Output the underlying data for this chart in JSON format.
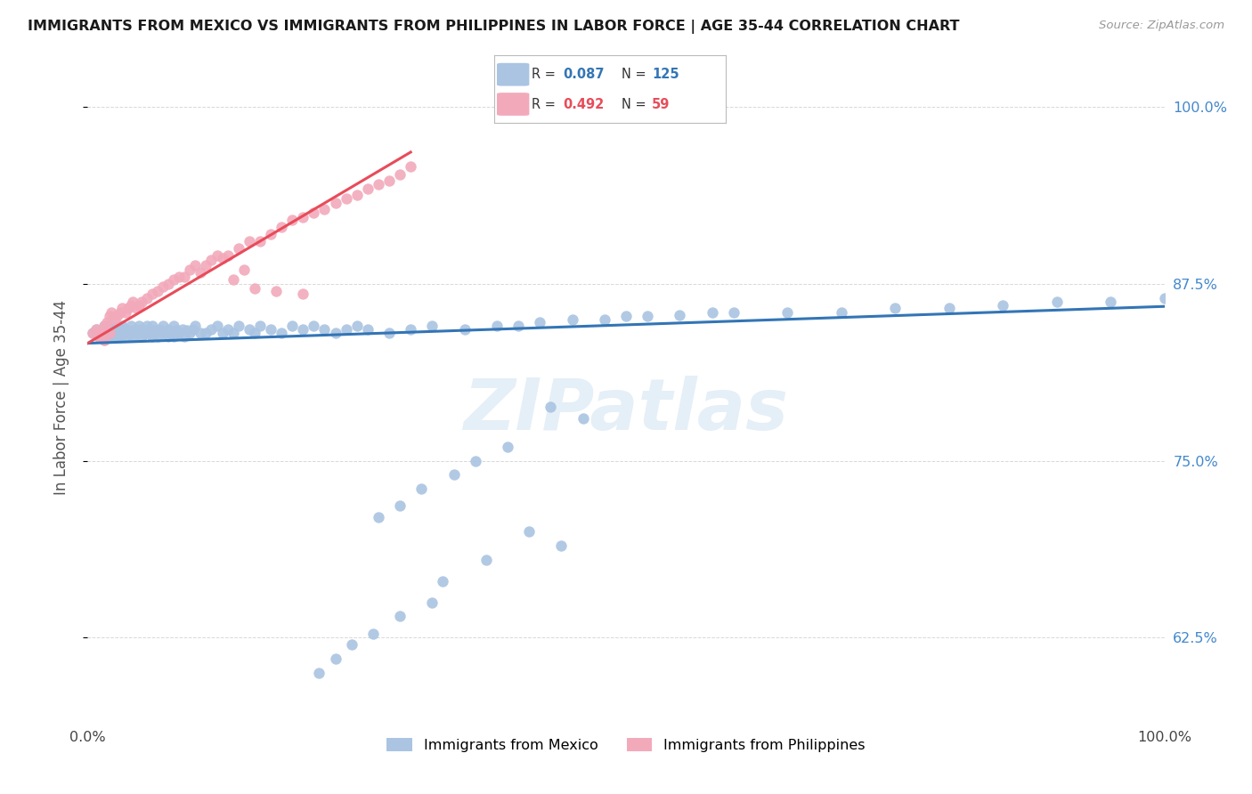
{
  "title": "IMMIGRANTS FROM MEXICO VS IMMIGRANTS FROM PHILIPPINES IN LABOR FORCE | AGE 35-44 CORRELATION CHART",
  "source": "Source: ZipAtlas.com",
  "ylabel": "In Labor Force | Age 35-44",
  "ytick_labels": [
    "100.0%",
    "87.5%",
    "75.0%",
    "62.5%"
  ],
  "ytick_values": [
    1.0,
    0.875,
    0.75,
    0.625
  ],
  "xlim": [
    0.0,
    1.0
  ],
  "ylim": [
    0.565,
    1.025
  ],
  "legend_blue_label": "Immigrants from Mexico",
  "legend_pink_label": "Immigrants from Philippines",
  "blue_color": "#aac4e2",
  "pink_color": "#f2aabb",
  "blue_line_color": "#3375b5",
  "pink_line_color": "#e84c5a",
  "background_color": "#ffffff",
  "grid_color": "#d8d8d8",
  "title_color": "#1a1a1a",
  "axis_label_color": "#555555",
  "right_tick_color": "#4488cc",
  "watermark": "ZIPatlas",
  "blue_x": [
    0.005,
    0.008,
    0.01,
    0.012,
    0.015,
    0.015,
    0.018,
    0.018,
    0.02,
    0.02,
    0.022,
    0.022,
    0.025,
    0.025,
    0.025,
    0.028,
    0.028,
    0.03,
    0.03,
    0.03,
    0.032,
    0.032,
    0.035,
    0.035,
    0.037,
    0.038,
    0.04,
    0.04,
    0.042,
    0.043,
    0.045,
    0.045,
    0.047,
    0.048,
    0.05,
    0.05,
    0.052,
    0.053,
    0.055,
    0.055,
    0.057,
    0.058,
    0.06,
    0.06,
    0.062,
    0.063,
    0.065,
    0.067,
    0.07,
    0.07,
    0.072,
    0.075,
    0.075,
    0.078,
    0.08,
    0.08,
    0.082,
    0.085,
    0.088,
    0.09,
    0.092,
    0.095,
    0.098,
    0.1,
    0.105,
    0.11,
    0.115,
    0.12,
    0.125,
    0.13,
    0.135,
    0.14,
    0.15,
    0.155,
    0.16,
    0.17,
    0.18,
    0.19,
    0.2,
    0.21,
    0.22,
    0.23,
    0.24,
    0.25,
    0.26,
    0.28,
    0.3,
    0.32,
    0.35,
    0.38,
    0.4,
    0.42,
    0.45,
    0.48,
    0.5,
    0.52,
    0.55,
    0.58,
    0.6,
    0.65,
    0.7,
    0.75,
    0.8,
    0.85,
    0.9,
    0.95,
    1.0,
    0.43,
    0.46,
    0.39,
    0.36,
    0.34,
    0.31,
    0.29,
    0.27,
    0.41,
    0.44,
    0.37,
    0.33,
    0.32,
    0.29,
    0.265,
    0.245,
    0.23,
    0.215
  ],
  "blue_y": [
    0.84,
    0.843,
    0.838,
    0.841,
    0.845,
    0.835,
    0.84,
    0.843,
    0.838,
    0.845,
    0.842,
    0.838,
    0.84,
    0.843,
    0.845,
    0.838,
    0.842,
    0.84,
    0.843,
    0.838,
    0.841,
    0.845,
    0.84,
    0.843,
    0.838,
    0.842,
    0.84,
    0.845,
    0.838,
    0.842,
    0.84,
    0.843,
    0.84,
    0.845,
    0.838,
    0.843,
    0.84,
    0.842,
    0.84,
    0.845,
    0.84,
    0.843,
    0.838,
    0.845,
    0.84,
    0.842,
    0.838,
    0.843,
    0.84,
    0.845,
    0.84,
    0.838,
    0.843,
    0.84,
    0.845,
    0.838,
    0.842,
    0.84,
    0.843,
    0.838,
    0.842,
    0.84,
    0.843,
    0.845,
    0.84,
    0.84,
    0.843,
    0.845,
    0.84,
    0.843,
    0.84,
    0.845,
    0.843,
    0.84,
    0.845,
    0.843,
    0.84,
    0.845,
    0.843,
    0.845,
    0.843,
    0.84,
    0.843,
    0.845,
    0.843,
    0.84,
    0.843,
    0.845,
    0.843,
    0.845,
    0.845,
    0.848,
    0.85,
    0.85,
    0.852,
    0.852,
    0.853,
    0.855,
    0.855,
    0.855,
    0.855,
    0.858,
    0.858,
    0.86,
    0.862,
    0.862,
    0.865,
    0.788,
    0.78,
    0.76,
    0.75,
    0.74,
    0.73,
    0.718,
    0.71,
    0.7,
    0.69,
    0.68,
    0.665,
    0.65,
    0.64,
    0.628,
    0.62,
    0.61,
    0.6
  ],
  "pink_x": [
    0.005,
    0.008,
    0.01,
    0.012,
    0.015,
    0.015,
    0.018,
    0.02,
    0.02,
    0.022,
    0.025,
    0.028,
    0.03,
    0.032,
    0.035,
    0.038,
    0.04,
    0.042,
    0.045,
    0.048,
    0.05,
    0.055,
    0.06,
    0.065,
    0.07,
    0.075,
    0.08,
    0.085,
    0.09,
    0.095,
    0.1,
    0.105,
    0.11,
    0.115,
    0.12,
    0.125,
    0.13,
    0.14,
    0.15,
    0.16,
    0.17,
    0.18,
    0.19,
    0.2,
    0.21,
    0.22,
    0.23,
    0.24,
    0.25,
    0.26,
    0.27,
    0.28,
    0.29,
    0.3,
    0.2,
    0.175,
    0.155,
    0.145,
    0.135
  ],
  "pink_y": [
    0.84,
    0.843,
    0.838,
    0.841,
    0.845,
    0.835,
    0.848,
    0.84,
    0.852,
    0.855,
    0.85,
    0.853,
    0.855,
    0.858,
    0.855,
    0.858,
    0.86,
    0.862,
    0.858,
    0.86,
    0.862,
    0.865,
    0.868,
    0.87,
    0.873,
    0.875,
    0.878,
    0.88,
    0.88,
    0.885,
    0.888,
    0.883,
    0.888,
    0.892,
    0.895,
    0.893,
    0.895,
    0.9,
    0.905,
    0.905,
    0.91,
    0.915,
    0.92,
    0.922,
    0.925,
    0.928,
    0.932,
    0.935,
    0.938,
    0.942,
    0.945,
    0.948,
    0.952,
    0.958,
    0.868,
    0.87,
    0.872,
    0.885,
    0.878
  ],
  "blue_trend_x": [
    0.0,
    1.0
  ],
  "blue_trend_y": [
    0.833,
    0.859
  ],
  "pink_trend_x": [
    0.0,
    0.3
  ],
  "pink_trend_y": [
    0.833,
    0.968
  ]
}
